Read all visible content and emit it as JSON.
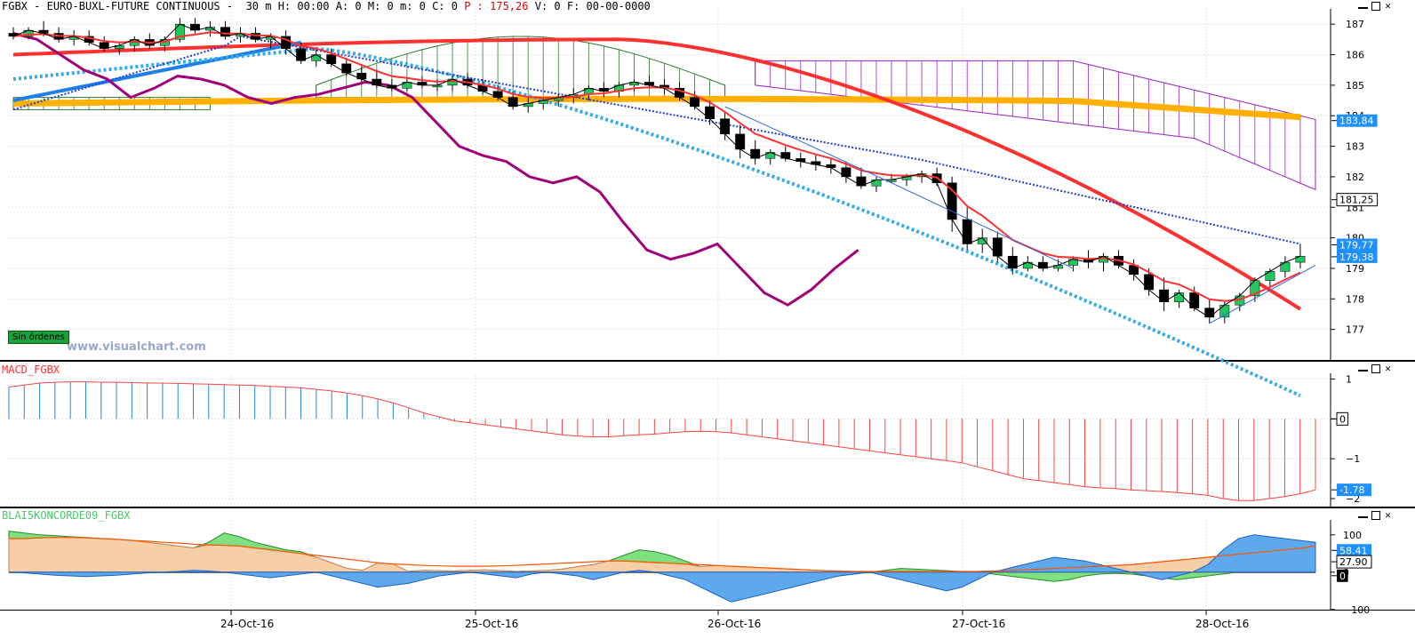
{
  "header": {
    "symbol": "FGBX",
    "name": "EURO-BUXL-FUTURE CONTINUOUS",
    "readout_prefix": "30 m H: 00:00 A: 0 M: 0 m: 0 C: 0",
    "readout_red": "P : 175,26",
    "readout_suffix": "V: 0 F: 00-00-0000"
  },
  "watermark": "www.visualchart.com",
  "orders_badge": "Sin órdenes",
  "macd_panel": {
    "title": "MACD_FGBX"
  },
  "osc_panel": {
    "title": "BLAI5KONCORDE09_FGBX"
  },
  "colors": {
    "up_candle": "#22c55e",
    "down_candle": "#000000",
    "red_line": "#ff3030",
    "dotted_blue": "#1f3fd0",
    "cyan_dotted": "#33aaee",
    "orange_line": "#ffb000",
    "magenta_line": "#a0007a",
    "thick_blue": "#1e7fe8",
    "macd_pos": "#2288dd",
    "macd_neg": "#ff4444",
    "cloud_green": "#2d7a2d",
    "cloud_purple": "#9922cc"
  },
  "chart_data": [
    {
      "type": "candlestick",
      "ylim": [
        176,
        187.5
      ],
      "y_ticks": [
        177,
        178,
        179,
        180,
        181,
        182,
        183,
        184,
        185,
        186,
        187
      ],
      "x_labels": [
        "24-Oct-16",
        "25-Oct-16",
        "26-Oct-16",
        "27-Oct-16",
        "28-Oct-16"
      ],
      "candles": [
        {
          "o": 186.7,
          "h": 186.9,
          "l": 186.5,
          "c": 186.6
        },
        {
          "o": 186.6,
          "h": 186.9,
          "l": 186.5,
          "c": 186.8
        },
        {
          "o": 186.8,
          "h": 187.1,
          "l": 186.6,
          "c": 186.7
        },
        {
          "o": 186.7,
          "h": 186.9,
          "l": 186.4,
          "c": 186.5
        },
        {
          "o": 186.5,
          "h": 186.8,
          "l": 186.3,
          "c": 186.6
        },
        {
          "o": 186.6,
          "h": 186.8,
          "l": 186.3,
          "c": 186.4
        },
        {
          "o": 186.4,
          "h": 186.6,
          "l": 186.1,
          "c": 186.2
        },
        {
          "o": 186.2,
          "h": 186.4,
          "l": 186.0,
          "c": 186.3
        },
        {
          "o": 186.3,
          "h": 186.6,
          "l": 186.1,
          "c": 186.5
        },
        {
          "o": 186.5,
          "h": 186.7,
          "l": 186.2,
          "c": 186.3
        },
        {
          "o": 186.3,
          "h": 186.6,
          "l": 186.1,
          "c": 186.5
        },
        {
          "o": 186.5,
          "h": 187.2,
          "l": 186.4,
          "c": 187.0
        },
        {
          "o": 187.0,
          "h": 187.2,
          "l": 186.7,
          "c": 186.8
        },
        {
          "o": 186.8,
          "h": 187.1,
          "l": 186.6,
          "c": 186.9
        },
        {
          "o": 186.9,
          "h": 187.1,
          "l": 186.5,
          "c": 186.6
        },
        {
          "o": 186.6,
          "h": 186.9,
          "l": 186.4,
          "c": 186.7
        },
        {
          "o": 186.7,
          "h": 186.9,
          "l": 186.4,
          "c": 186.5
        },
        {
          "o": 186.5,
          "h": 186.7,
          "l": 186.2,
          "c": 186.6
        },
        {
          "o": 186.6,
          "h": 186.8,
          "l": 186.0,
          "c": 186.2
        },
        {
          "o": 186.2,
          "h": 186.4,
          "l": 185.7,
          "c": 185.8
        },
        {
          "o": 185.8,
          "h": 186.2,
          "l": 185.6,
          "c": 186.0
        },
        {
          "o": 186.0,
          "h": 186.2,
          "l": 185.6,
          "c": 185.7
        },
        {
          "o": 185.7,
          "h": 185.9,
          "l": 185.3,
          "c": 185.4
        },
        {
          "o": 185.4,
          "h": 185.7,
          "l": 185.1,
          "c": 185.2
        },
        {
          "o": 185.2,
          "h": 185.5,
          "l": 184.9,
          "c": 185.0
        },
        {
          "o": 185.0,
          "h": 185.2,
          "l": 184.8,
          "c": 184.9
        },
        {
          "o": 184.9,
          "h": 185.2,
          "l": 184.8,
          "c": 185.1
        },
        {
          "o": 185.1,
          "h": 185.3,
          "l": 184.9,
          "c": 185.0
        },
        {
          "o": 185.0,
          "h": 185.2,
          "l": 184.8,
          "c": 185.0
        },
        {
          "o": 185.0,
          "h": 185.3,
          "l": 184.8,
          "c": 185.2
        },
        {
          "o": 185.2,
          "h": 185.4,
          "l": 184.9,
          "c": 185.0
        },
        {
          "o": 185.0,
          "h": 185.2,
          "l": 184.7,
          "c": 184.8
        },
        {
          "o": 184.8,
          "h": 185.0,
          "l": 184.5,
          "c": 184.6
        },
        {
          "o": 184.6,
          "h": 184.8,
          "l": 184.2,
          "c": 184.3
        },
        {
          "o": 184.3,
          "h": 184.6,
          "l": 184.1,
          "c": 184.4
        },
        {
          "o": 184.4,
          "h": 184.6,
          "l": 184.2,
          "c": 184.5
        },
        {
          "o": 184.5,
          "h": 184.7,
          "l": 184.3,
          "c": 184.6
        },
        {
          "o": 184.6,
          "h": 184.9,
          "l": 184.4,
          "c": 184.7
        },
        {
          "o": 184.7,
          "h": 185.0,
          "l": 184.5,
          "c": 184.9
        },
        {
          "o": 184.9,
          "h": 185.1,
          "l": 184.6,
          "c": 184.8
        },
        {
          "o": 184.8,
          "h": 185.1,
          "l": 184.6,
          "c": 185.0
        },
        {
          "o": 185.0,
          "h": 185.2,
          "l": 184.8,
          "c": 185.1
        },
        {
          "o": 185.1,
          "h": 185.3,
          "l": 184.9,
          "c": 185.0
        },
        {
          "o": 185.0,
          "h": 185.2,
          "l": 184.7,
          "c": 184.9
        },
        {
          "o": 184.9,
          "h": 185.1,
          "l": 184.5,
          "c": 184.6
        },
        {
          "o": 184.6,
          "h": 184.8,
          "l": 184.2,
          "c": 184.3
        },
        {
          "o": 184.3,
          "h": 184.5,
          "l": 183.7,
          "c": 183.9
        },
        {
          "o": 183.9,
          "h": 184.1,
          "l": 183.2,
          "c": 183.4
        },
        {
          "o": 183.4,
          "h": 183.7,
          "l": 182.6,
          "c": 182.9
        },
        {
          "o": 182.9,
          "h": 183.2,
          "l": 182.4,
          "c": 182.6
        },
        {
          "o": 182.6,
          "h": 182.9,
          "l": 182.4,
          "c": 182.8
        },
        {
          "o": 182.8,
          "h": 183.0,
          "l": 182.5,
          "c": 182.6
        },
        {
          "o": 182.6,
          "h": 182.8,
          "l": 182.3,
          "c": 182.5
        },
        {
          "o": 182.5,
          "h": 182.7,
          "l": 182.2,
          "c": 182.4
        },
        {
          "o": 182.4,
          "h": 182.6,
          "l": 182.1,
          "c": 182.3
        },
        {
          "o": 182.3,
          "h": 182.5,
          "l": 181.8,
          "c": 182.0
        },
        {
          "o": 182.0,
          "h": 182.3,
          "l": 181.6,
          "c": 181.7
        },
        {
          "o": 181.7,
          "h": 182.0,
          "l": 181.5,
          "c": 181.9
        },
        {
          "o": 181.9,
          "h": 182.1,
          "l": 181.8,
          "c": 181.9
        },
        {
          "o": 181.9,
          "h": 182.1,
          "l": 181.7,
          "c": 182.0
        },
        {
          "o": 182.0,
          "h": 182.2,
          "l": 181.8,
          "c": 182.1
        },
        {
          "o": 182.1,
          "h": 182.3,
          "l": 181.7,
          "c": 181.8
        },
        {
          "o": 181.8,
          "h": 182.0,
          "l": 180.2,
          "c": 180.6
        },
        {
          "o": 180.6,
          "h": 181.0,
          "l": 179.6,
          "c": 179.8
        },
        {
          "o": 179.8,
          "h": 180.3,
          "l": 179.5,
          "c": 180.0
        },
        {
          "o": 180.0,
          "h": 180.2,
          "l": 179.2,
          "c": 179.4
        },
        {
          "o": 179.4,
          "h": 179.7,
          "l": 178.8,
          "c": 179.0
        },
        {
          "o": 179.0,
          "h": 179.4,
          "l": 178.9,
          "c": 179.2
        },
        {
          "o": 179.2,
          "h": 179.4,
          "l": 178.9,
          "c": 179.0
        },
        {
          "o": 179.0,
          "h": 179.3,
          "l": 178.9,
          "c": 179.1
        },
        {
          "o": 179.1,
          "h": 179.4,
          "l": 178.9,
          "c": 179.3
        },
        {
          "o": 179.3,
          "h": 179.6,
          "l": 179.0,
          "c": 179.2
        },
        {
          "o": 179.2,
          "h": 179.5,
          "l": 178.9,
          "c": 179.4
        },
        {
          "o": 179.4,
          "h": 179.6,
          "l": 179.0,
          "c": 179.1
        },
        {
          "o": 179.1,
          "h": 179.3,
          "l": 178.6,
          "c": 178.8
        },
        {
          "o": 178.8,
          "h": 179.0,
          "l": 178.1,
          "c": 178.3
        },
        {
          "o": 178.3,
          "h": 178.7,
          "l": 177.6,
          "c": 177.9
        },
        {
          "o": 177.9,
          "h": 178.3,
          "l": 177.7,
          "c": 178.2
        },
        {
          "o": 178.2,
          "h": 178.4,
          "l": 177.6,
          "c": 177.7
        },
        {
          "o": 177.7,
          "h": 178.0,
          "l": 177.2,
          "c": 177.4
        },
        {
          "o": 177.4,
          "h": 177.9,
          "l": 177.2,
          "c": 177.8
        },
        {
          "o": 177.8,
          "h": 178.2,
          "l": 177.6,
          "c": 178.1
        },
        {
          "o": 178.1,
          "h": 178.7,
          "l": 177.9,
          "c": 178.6
        },
        {
          "o": 178.6,
          "h": 179.0,
          "l": 178.4,
          "c": 178.9
        },
        {
          "o": 178.9,
          "h": 179.4,
          "l": 178.7,
          "c": 179.2
        },
        {
          "o": 179.2,
          "h": 179.8,
          "l": 179.0,
          "c": 179.4
        }
      ],
      "price_tags": [
        {
          "value": 183.84,
          "label": "183,84"
        },
        {
          "value": 181.25,
          "label": "181,25"
        },
        {
          "value": 179.77,
          "label": "179,77"
        },
        {
          "value": 179.38,
          "label": "179,38"
        }
      ]
    },
    {
      "type": "bar",
      "name": "MACD_FGBX",
      "ylim": [
        -2.2,
        1.1
      ],
      "y_ticks": [
        1,
        0,
        -1,
        -2
      ],
      "values": [
        0.8,
        0.85,
        0.9,
        0.92,
        0.93,
        0.93,
        0.92,
        0.92,
        0.91,
        0.9,
        0.9,
        0.89,
        0.88,
        0.87,
        0.86,
        0.85,
        0.84,
        0.82,
        0.8,
        0.78,
        0.74,
        0.7,
        0.65,
        0.58,
        0.5,
        0.4,
        0.28,
        0.15,
        0.05,
        -0.05,
        -0.1,
        -0.15,
        -0.2,
        -0.25,
        -0.3,
        -0.35,
        -0.4,
        -0.43,
        -0.45,
        -0.45,
        -0.42,
        -0.4,
        -0.38,
        -0.35,
        -0.32,
        -0.31,
        -0.32,
        -0.35,
        -0.4,
        -0.45,
        -0.5,
        -0.55,
        -0.6,
        -0.65,
        -0.7,
        -0.75,
        -0.8,
        -0.85,
        -0.9,
        -0.95,
        -1.0,
        -1.05,
        -1.1,
        -1.2,
        -1.3,
        -1.4,
        -1.5,
        -1.55,
        -1.6,
        -1.65,
        -1.7,
        -1.73,
        -1.75,
        -1.78,
        -1.8,
        -1.82,
        -1.85,
        -1.88,
        -1.92,
        -2.0,
        -2.05,
        -2.05,
        -2.0,
        -1.95,
        -1.88,
        -1.78
      ],
      "last_tag": "-1.78",
      "zero_tag": "0"
    },
    {
      "type": "area",
      "name": "BLAI5KONCORDE09_FGBX",
      "ylim": [
        -110,
        140
      ],
      "y_ticks": [
        100,
        0,
        -100
      ],
      "series": [
        {
          "values": [
            110,
            105,
            100,
            98,
            95,
            93,
            90,
            88,
            85,
            80,
            75,
            70,
            65,
            80,
            105,
            95,
            80,
            70,
            60,
            55,
            40,
            25,
            10,
            5,
            0,
            -3,
            2,
            5,
            4,
            3,
            5,
            6,
            4,
            2,
            3,
            5,
            8,
            15,
            20,
            30,
            45,
            60,
            55,
            45,
            30,
            15,
            0,
            -20,
            -40,
            -35,
            -30,
            -25,
            -20,
            -15,
            -10,
            -5,
            0,
            5,
            10,
            8,
            6,
            4,
            2,
            0,
            -5,
            -10,
            -15,
            -20,
            -25,
            -20,
            -10,
            -5,
            -3,
            -5,
            -10,
            -15,
            -20,
            -15,
            -10,
            -5,
            0,
            5,
            10,
            15,
            25,
            30
          ]
        },
        {
          "values": [
            90,
            90,
            92,
            93,
            93,
            92,
            90,
            88,
            85,
            83,
            80,
            78,
            75,
            73,
            72,
            70,
            65,
            60,
            55,
            50,
            45,
            40,
            35,
            30,
            25,
            22,
            20,
            18,
            17,
            16,
            16,
            16,
            17,
            18,
            20,
            22,
            24,
            26,
            28,
            30,
            30,
            28,
            26,
            24,
            22,
            20,
            18,
            16,
            14,
            12,
            10,
            8,
            6,
            4,
            3,
            2,
            2,
            2,
            2,
            2,
            2,
            2,
            2,
            2,
            3,
            4,
            6,
            8,
            10,
            12,
            14,
            16,
            18,
            20,
            24,
            28,
            32,
            36,
            40,
            44,
            48,
            52,
            56,
            60,
            64,
            70
          ]
        },
        {
          "values": [
            0,
            -2,
            -5,
            -8,
            -10,
            -12,
            -10,
            -8,
            -5,
            -2,
            0,
            2,
            5,
            3,
            0,
            -5,
            -10,
            -15,
            -10,
            -5,
            0,
            -10,
            -20,
            -30,
            -40,
            -35,
            -30,
            -20,
            -10,
            -5,
            0,
            -5,
            -10,
            -15,
            -5,
            0,
            -5,
            -10,
            -20,
            -10,
            0,
            5,
            0,
            -10,
            -20,
            -40,
            -60,
            -80,
            -70,
            -60,
            -50,
            -40,
            -30,
            -20,
            -10,
            -5,
            0,
            -10,
            -20,
            -30,
            -40,
            -50,
            -40,
            -20,
            0,
            10,
            20,
            30,
            40,
            35,
            30,
            20,
            10,
            0,
            -10,
            -20,
            -10,
            0,
            20,
            60,
            90,
            100,
            95,
            90,
            85,
            80
          ]
        }
      ],
      "tags": [
        {
          "label": "58.41",
          "kind": "blue"
        },
        {
          "label": "27.90",
          "kind": "white"
        },
        {
          "label": "0",
          "kind": "black"
        }
      ]
    }
  ]
}
